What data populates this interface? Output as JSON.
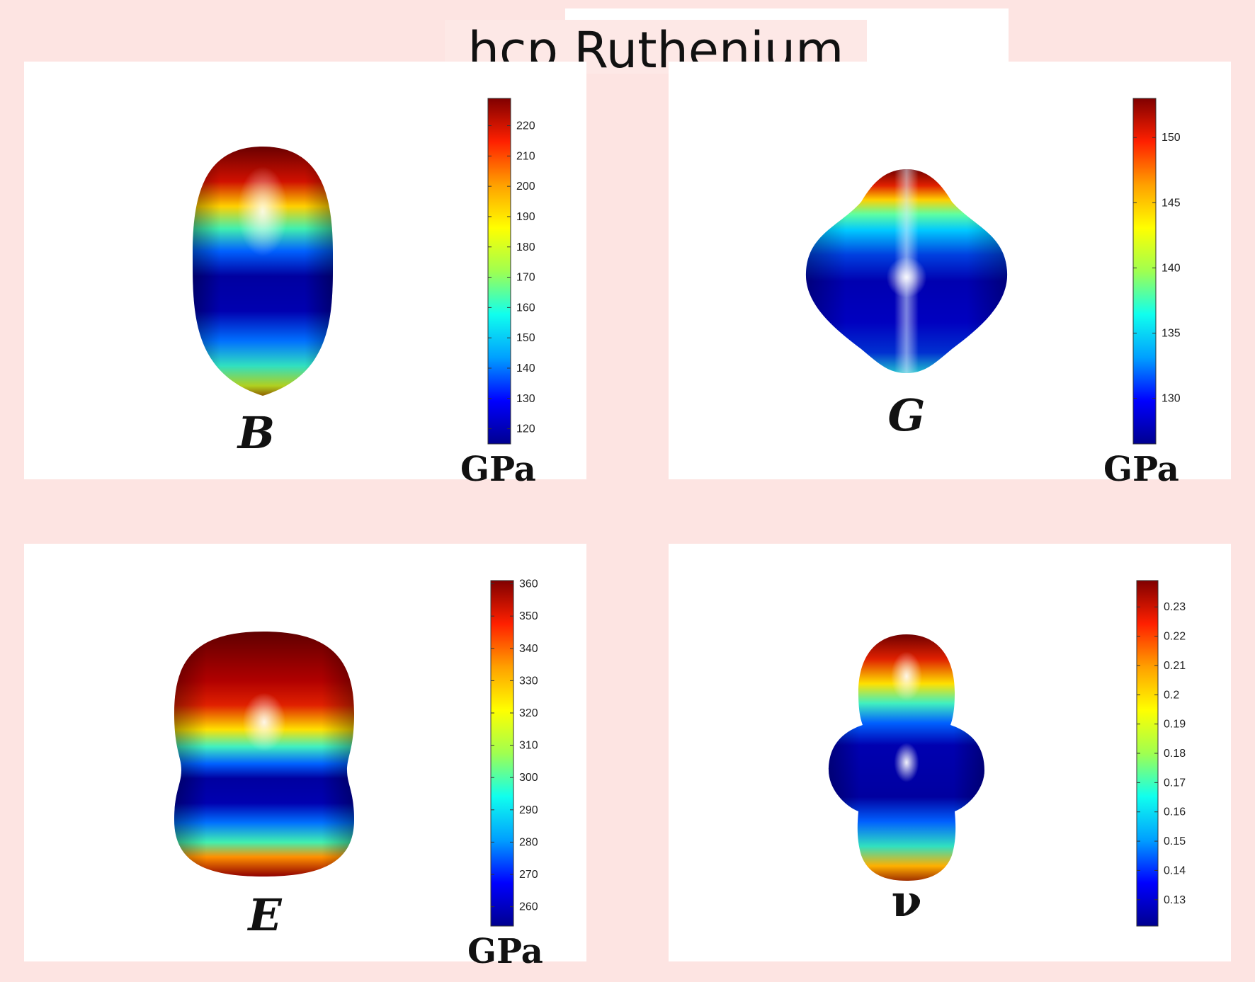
{
  "title": "hcp Ruthenium",
  "colormap": [
    "#00008f",
    "#0000ff",
    "#00a0ff",
    "#10ffee",
    "#a0ff50",
    "#ffff00",
    "#ffa000",
    "#ff2000",
    "#800000"
  ],
  "panels": [
    {
      "symbol": "B",
      "unit": "GPa",
      "colorbar": {
        "min": 115,
        "max": 229,
        "ticks": [
          120,
          130,
          140,
          150,
          160,
          170,
          180,
          190,
          200,
          210,
          220
        ]
      },
      "shape": "elongated-ellipsoid"
    },
    {
      "symbol": "G",
      "unit": "GPa",
      "colorbar": {
        "min": 126.5,
        "max": 153,
        "ticks": [
          130,
          135,
          140,
          145,
          150
        ]
      },
      "shape": "diamond-ellipsoid"
    },
    {
      "symbol": "E",
      "unit": "GPa",
      "colorbar": {
        "min": 254,
        "max": 361,
        "ticks": [
          260,
          270,
          280,
          290,
          300,
          310,
          320,
          330,
          340,
          350,
          360
        ]
      },
      "shape": "pinched-cylinder"
    },
    {
      "symbol": "ν",
      "unit": "",
      "colorbar": {
        "min": 0.121,
        "max": 0.239,
        "ticks": [
          0.13,
          0.14,
          0.15,
          0.16,
          0.17,
          0.18,
          0.19,
          0.2,
          0.21,
          0.22,
          0.23
        ]
      },
      "shape": "peanut"
    }
  ]
}
